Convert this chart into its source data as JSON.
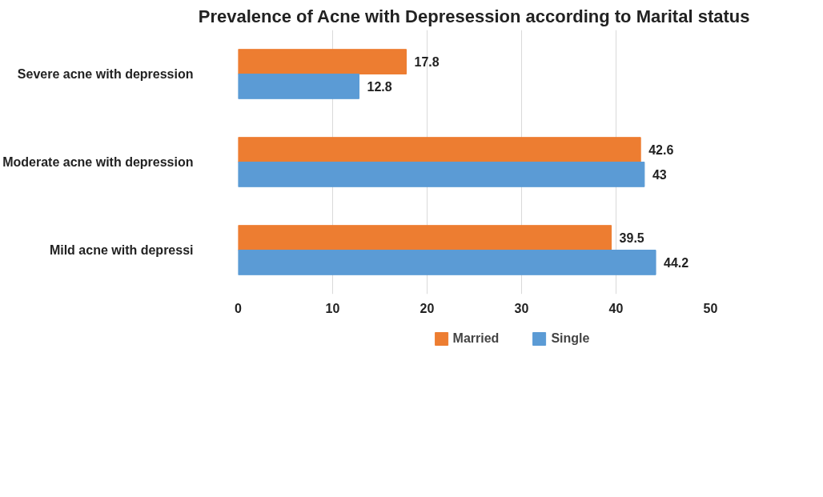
{
  "chart_data": {
    "type": "bar",
    "orientation": "horizontal",
    "title": "Prevalence of Acne with Depresession according to Marital status",
    "categories": [
      "Severe acne with depression",
      "Moderate acne with depression",
      "Mild acne with depressi"
    ],
    "series": [
      {
        "name": "Married",
        "color": "#ed7d31",
        "values": [
          17.8,
          42.6,
          39.5
        ]
      },
      {
        "name": "Single",
        "color": "#5b9bd5",
        "values": [
          12.8,
          43,
          44.2
        ]
      }
    ],
    "xlim": [
      0,
      50
    ],
    "xticks": [
      0,
      10,
      20,
      30,
      40,
      50
    ],
    "grid": "x",
    "legend": "bottom",
    "data_labels": true
  }
}
